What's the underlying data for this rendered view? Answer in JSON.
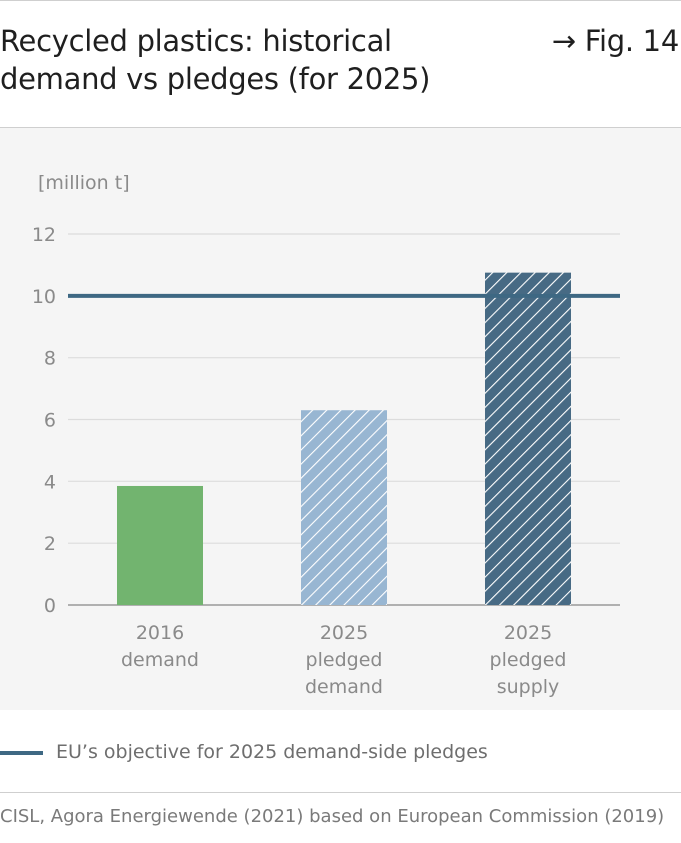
{
  "header": {
    "title": "Recycled plastics: historical demand vs pledges (for 2025)",
    "fig_ref": "→ Fig. 14"
  },
  "colors": {
    "green": "#72b46f",
    "light_blue": "#98b6d2",
    "dark_blue": "#476a84",
    "objective_line": "#3e6883",
    "grid": "#dcdcdc",
    "axis_text": "#8a8a8a",
    "panel_bg": "#f5f5f5"
  },
  "chart_data": {
    "type": "bar",
    "unit_label": "[million t]",
    "categories": [
      [
        "2016",
        "demand"
      ],
      [
        "2025",
        "pledged",
        "demand"
      ],
      [
        "2025",
        "pledged",
        "supply"
      ]
    ],
    "values": [
      3.85,
      6.3,
      10.75
    ],
    "bar_styles": [
      "solid",
      "hatched",
      "hatched"
    ],
    "bar_colors": [
      "#72b46f",
      "#98b6d2",
      "#476a84"
    ],
    "reference_line": {
      "value": 10,
      "name": "EU’s objective for 2025 demand-side pledges"
    },
    "ylim": [
      0,
      12
    ],
    "yticks": [
      0,
      2,
      4,
      6,
      8,
      10,
      12
    ],
    "grid": true,
    "legend_position": "bottom-left"
  },
  "legend": {
    "label": "EU’s objective for 2025 demand-side pledges"
  },
  "source": "CISL, Agora Energiewende (2021) based on European Commission (2019)"
}
